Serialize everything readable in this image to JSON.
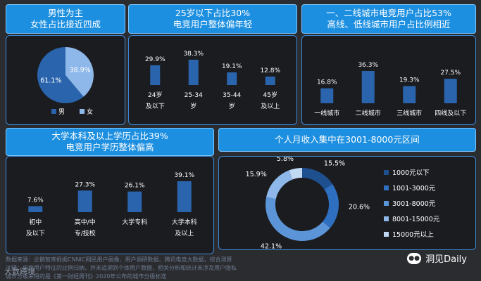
{
  "panels": [
    {
      "title1": "男性为主",
      "title2": "女性占比接近四成"
    },
    {
      "title1": "25岁以下占比30%",
      "title2": "电竞用户整体偏年轻"
    },
    {
      "title1": "一、二线城市电竞用户占比53%",
      "title2": "高线、低线城市用户占比例相近"
    },
    {
      "title1": "大学本科及以上学历占比39%",
      "title2": "电竞用户学历整体偏高"
    },
    {
      "title1": "个人月收入集中在3001-8000元区间",
      "title2": ""
    }
  ],
  "chart_data": [
    {
      "type": "pie",
      "categories": [
        "男",
        "女"
      ],
      "values": [
        61.1,
        38.9
      ],
      "labels": [
        "61.1%",
        "38.9%"
      ],
      "colors": [
        "#2a64ad",
        "#8fb8ea"
      ],
      "legend": "bottom"
    },
    {
      "type": "bar",
      "categories": [
        [
          "24岁",
          "及以下"
        ],
        [
          "25-34",
          "岁"
        ],
        [
          "35-44",
          "岁"
        ],
        [
          "45岁",
          "及以上"
        ]
      ],
      "values": [
        29.9,
        38.3,
        19.1,
        12.8
      ],
      "labels": [
        "29.9%",
        "38.3%",
        "19.1%",
        "12.8%"
      ],
      "color": "#2a64ad"
    },
    {
      "type": "bar",
      "categories": [
        [
          "一线城市"
        ],
        [
          "二线城市"
        ],
        [
          "三线城市"
        ],
        [
          "四线及以下"
        ]
      ],
      "values": [
        16.8,
        36.3,
        19.3,
        27.5
      ],
      "labels": [
        "16.8%",
        "36.3%",
        "19.3%",
        "27.5%"
      ],
      "color": "#2a64ad"
    },
    {
      "type": "bar",
      "categories": [
        [
          "初中",
          "及以下"
        ],
        [
          "高中/中",
          "专/技校"
        ],
        [
          "大学专科"
        ],
        [
          "大学本科",
          "及以上"
        ]
      ],
      "values": [
        7.6,
        27.3,
        26.1,
        39.1
      ],
      "labels": [
        "7.6%",
        "27.3%",
        "26.1%",
        "39.1%"
      ],
      "color": "#2a64ad"
    },
    {
      "type": "pie",
      "subtype": "donut",
      "categories": [
        "1000元以下",
        "1001-3000元",
        "3001-8000元",
        "8001-15000元",
        "15000元以上"
      ],
      "values": [
        15.5,
        20.6,
        42.1,
        15.9,
        5.8
      ],
      "labels": [
        "15.5%",
        "20.6%",
        "42.1%",
        "15.9%",
        "5.8%"
      ],
      "colors": [
        "#1e4f8f",
        "#2f6fc0",
        "#5b95d8",
        "#8fb8ea",
        "#c2d9f4"
      ],
      "legend": "right"
    }
  ],
  "footer": {
    "line1": "数据来源：企鹅智库根据CNNIC网民用户画像、用户调研数据、腾讯电竞大数据，综合测算",
    "line2": "注释：电竞用户特征的比例归纳，并未追溯到个体用户数据，相关分析和统计未涉及用户隐私",
    "line3": "城市分级采用的是《第一财经周刊》2020年公布的城市分级标准"
  },
  "logo_left": "大数跨境",
  "brand": "洞见Daily"
}
